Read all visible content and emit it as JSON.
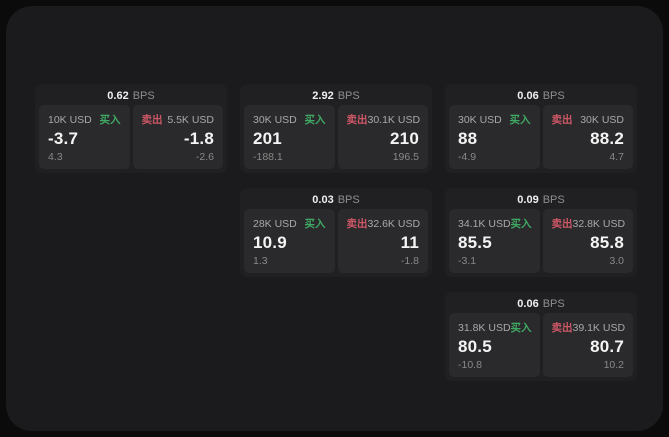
{
  "app": {
    "bps_unit": "BPS",
    "buy_label": "买入",
    "sell_label": "卖出"
  },
  "colors": {
    "background": "#0b0b0c",
    "panel": "#1b1b1d",
    "card": "#202022",
    "tile": "#2a2a2c",
    "buy": "#3fa963",
    "sell": "#cd5766"
  },
  "cards": [
    {
      "bps": "0.62",
      "col": 1,
      "row": 1,
      "buy": {
        "notional": "10K USD",
        "value": "-3.7",
        "sub_value": "4.3"
      },
      "sell": {
        "notional": "5.5K USD",
        "value": "-1.8",
        "sub_value": "-2.6"
      }
    },
    {
      "bps": "2.92",
      "col": 2,
      "row": 1,
      "buy": {
        "notional": "30K USD",
        "value": "201",
        "sub_value": "-188.1"
      },
      "sell": {
        "notional": "30.1K USD",
        "value": "210",
        "sub_value": "196.5"
      }
    },
    {
      "bps": "0.06",
      "col": 3,
      "row": 1,
      "buy": {
        "notional": "30K USD",
        "value": "88",
        "sub_value": "-4.9"
      },
      "sell": {
        "notional": "30K USD",
        "value": "88.2",
        "sub_value": "4.7"
      }
    },
    {
      "bps": "0.03",
      "col": 2,
      "row": 2,
      "buy": {
        "notional": "28K USD",
        "value": "10.9",
        "sub_value": "1.3"
      },
      "sell": {
        "notional": "32.6K USD",
        "value": "11",
        "sub_value": "-1.8"
      }
    },
    {
      "bps": "0.09",
      "col": 3,
      "row": 2,
      "buy": {
        "notional": "34.1K USD",
        "value": "85.5",
        "sub_value": "-3.1"
      },
      "sell": {
        "notional": "32.8K USD",
        "value": "85.8",
        "sub_value": "3.0"
      }
    },
    {
      "bps": "0.06",
      "col": 3,
      "row": 3,
      "buy": {
        "notional": "31.8K USD",
        "value": "80.5",
        "sub_value": "-10.8"
      },
      "sell": {
        "notional": "39.1K USD",
        "value": "80.7",
        "sub_value": "10.2"
      }
    }
  ]
}
